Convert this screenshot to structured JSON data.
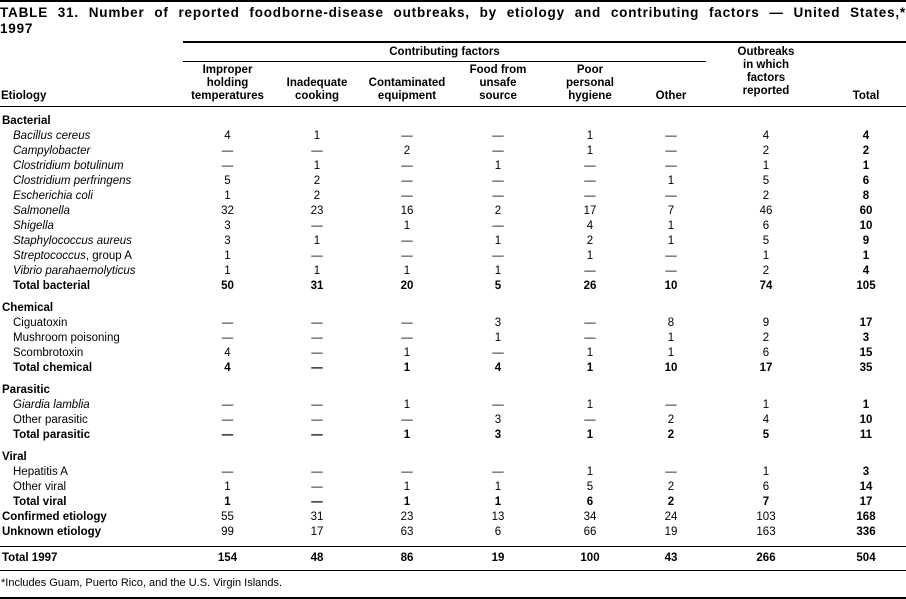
{
  "title": "TABLE 31. Number of reported foodborne-disease outbreaks, by etiology and contributing factors — United States,* 1997",
  "footnote": "*Includes Guam, Puerto Rico, and the U.S. Virgin Islands.",
  "table": {
    "columns": {
      "etiology": "Etiology",
      "group": "Contributing factors",
      "factors": [
        "Improper\nholding\ntemperatures",
        "Inadequate\ncooking",
        "Contaminated\nequipment",
        "Food from\nunsafe\nsource",
        "Poor\npersonal\nhygiene",
        "Other"
      ],
      "outbreaks": "Outbreaks\nin which\nfactors\nreported",
      "total": "Total"
    },
    "rows": [
      {
        "label": "Bacterial",
        "type": "section",
        "values": []
      },
      {
        "label": "Bacillus cereus",
        "type": "sub",
        "italic": true,
        "values": [
          "4",
          "1",
          "—",
          "—",
          "1",
          "—",
          "4",
          "4"
        ]
      },
      {
        "label": "Campylobacter",
        "type": "sub",
        "italic": true,
        "values": [
          "—",
          "—",
          "2",
          "—",
          "1",
          "—",
          "2",
          "2"
        ]
      },
      {
        "label": "Clostridium botulinum",
        "type": "sub",
        "italic": true,
        "values": [
          "—",
          "1",
          "—",
          "1",
          "—",
          "—",
          "1",
          "1"
        ]
      },
      {
        "label": "Clostridium perfringens",
        "type": "sub",
        "italic": true,
        "values": [
          "5",
          "2",
          "—",
          "—",
          "—",
          "1",
          "5",
          "6"
        ]
      },
      {
        "label": "Escherichia coli",
        "type": "sub",
        "italic": true,
        "values": [
          "1",
          "2",
          "—",
          "—",
          "—",
          "—",
          "2",
          "8"
        ]
      },
      {
        "label": "Salmonella",
        "type": "sub",
        "italic": true,
        "values": [
          "32",
          "23",
          "16",
          "2",
          "17",
          "7",
          "46",
          "60"
        ]
      },
      {
        "label": "Shigella",
        "type": "sub",
        "italic": true,
        "values": [
          "3",
          "—",
          "1",
          "—",
          "4",
          "1",
          "6",
          "10"
        ]
      },
      {
        "label": "Staphylococcus aureus",
        "type": "sub",
        "italic": true,
        "values": [
          "3",
          "1",
          "—",
          "1",
          "2",
          "1",
          "5",
          "9"
        ]
      },
      {
        "label": "Streptococcus",
        "suffix": ", group A",
        "type": "sub",
        "italic": true,
        "values": [
          "1",
          "—",
          "—",
          "—",
          "1",
          "—",
          "1",
          "1"
        ]
      },
      {
        "label": "Vibrio parahaemolyticus",
        "type": "sub",
        "italic": true,
        "values": [
          "1",
          "1",
          "1",
          "1",
          "—",
          "—",
          "2",
          "4"
        ]
      },
      {
        "label": "Total bacterial",
        "type": "total",
        "values": [
          "50",
          "31",
          "20",
          "5",
          "26",
          "10",
          "74",
          "105"
        ]
      },
      {
        "label": "Chemical",
        "type": "section",
        "values": []
      },
      {
        "label": "Ciguatoxin",
        "type": "sub",
        "values": [
          "—",
          "—",
          "—",
          "3",
          "—",
          "8",
          "9",
          "17"
        ]
      },
      {
        "label": "Mushroom poisoning",
        "type": "sub",
        "values": [
          "—",
          "—",
          "—",
          "1",
          "—",
          "1",
          "2",
          "3"
        ]
      },
      {
        "label": "Scombrotoxin",
        "type": "sub",
        "values": [
          "4",
          "—",
          "1",
          "—",
          "1",
          "1",
          "6",
          "15"
        ]
      },
      {
        "label": "Total chemical",
        "type": "total",
        "values": [
          "4",
          "—",
          "1",
          "4",
          "1",
          "10",
          "17",
          "35"
        ]
      },
      {
        "label": "Parasitic",
        "type": "section",
        "values": []
      },
      {
        "label": "Giardia lamblia",
        "type": "sub",
        "italic": true,
        "values": [
          "—",
          "—",
          "1",
          "—",
          "1",
          "—",
          "1",
          "1"
        ]
      },
      {
        "label": "Other parasitic",
        "type": "sub",
        "values": [
          "—",
          "—",
          "—",
          "3",
          "—",
          "2",
          "4",
          "10"
        ]
      },
      {
        "label": "Total parasitic",
        "type": "total",
        "values": [
          "—",
          "—",
          "1",
          "3",
          "1",
          "2",
          "5",
          "11"
        ]
      },
      {
        "label": "Viral",
        "type": "section",
        "values": []
      },
      {
        "label": "Hepatitis A",
        "type": "sub",
        "values": [
          "—",
          "—",
          "—",
          "—",
          "1",
          "—",
          "1",
          "3"
        ]
      },
      {
        "label": "Other viral",
        "type": "sub",
        "values": [
          "1",
          "—",
          "1",
          "1",
          "5",
          "2",
          "6",
          "14"
        ]
      },
      {
        "label": "Total viral",
        "type": "total",
        "values": [
          "1",
          "—",
          "1",
          "1",
          "6",
          "2",
          "7",
          "17"
        ]
      },
      {
        "label": "Confirmed etiology",
        "type": "summary",
        "values": [
          "55",
          "31",
          "23",
          "13",
          "34",
          "24",
          "103",
          "168"
        ]
      },
      {
        "label": "Unknown etiology",
        "type": "summary",
        "values": [
          "99",
          "17",
          "63",
          "6",
          "66",
          "19",
          "163",
          "336"
        ]
      },
      {
        "label": "Total 1997",
        "type": "grand",
        "values": [
          "154",
          "48",
          "86",
          "19",
          "100",
          "43",
          "266",
          "504"
        ]
      }
    ]
  }
}
